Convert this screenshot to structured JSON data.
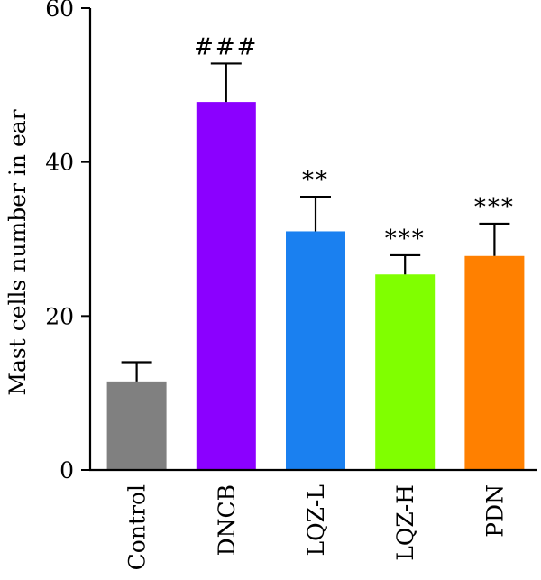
{
  "chart_data": {
    "type": "bar",
    "title": "",
    "xlabel": "",
    "ylabel": "Mast cells number in ear",
    "ylim": [
      0,
      60
    ],
    "yticks": [
      0,
      20,
      40,
      60
    ],
    "grid": false,
    "categories": [
      "Control",
      "DNCB",
      "LQZ-L",
      "LQZ-H",
      "PDN"
    ],
    "values": [
      11.5,
      47.8,
      31.0,
      25.4,
      27.8
    ],
    "errors": [
      2.5,
      5.0,
      4.5,
      2.5,
      4.2
    ],
    "colors": [
      "#808080",
      "#8b00ff",
      "#1a80f0",
      "#80ff00",
      "#ff8000"
    ],
    "annotations": [
      "",
      "###",
      "**",
      "***",
      "***"
    ]
  }
}
